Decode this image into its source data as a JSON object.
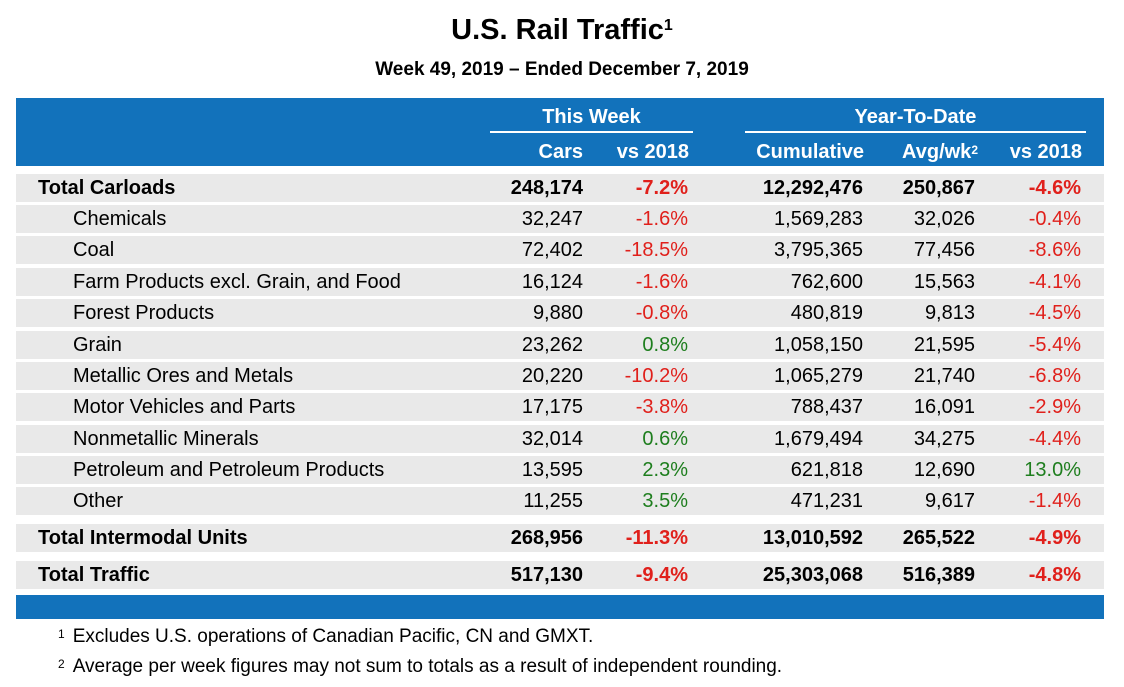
{
  "title": "U.S. Rail Traffic",
  "title_footnote": "1",
  "subtitle": "Week 49, 2019 – Ended December 7, 2019",
  "groups": {
    "this_week": "This Week",
    "ytd": "Year-To-Date"
  },
  "columns": {
    "cars": "Cars",
    "vs2018_week": "vs 2018",
    "cumulative": "Cumulative",
    "avgwk": "Avg/wk",
    "avgwk_footnote": "2",
    "vs2018_ytd": "vs 2018"
  },
  "colors": {
    "header": "#1272bb",
    "row_bg": "#e9e9e9",
    "negative": "#e0201b",
    "positive": "#1e7e1e"
  },
  "chart_data": {
    "type": "table",
    "title": "U.S. Rail Traffic",
    "subtitle": "Week 49, 2019 – Ended December 7, 2019",
    "columns": [
      "Cars",
      "vs 2018",
      "Cumulative",
      "Avg/wk",
      "vs 2018"
    ],
    "rows": [
      {
        "label": "Total Carloads",
        "total": true,
        "cars": "248,174",
        "wk_chg": "-7.2%",
        "cumulative": "12,292,476",
        "avg": "250,867",
        "ytd_chg": "-4.6%"
      },
      {
        "label": "Chemicals",
        "total": false,
        "cars": "32,247",
        "wk_chg": "-1.6%",
        "cumulative": "1,569,283",
        "avg": "32,026",
        "ytd_chg": "-0.4%"
      },
      {
        "label": "Coal",
        "total": false,
        "cars": "72,402",
        "wk_chg": "-18.5%",
        "cumulative": "3,795,365",
        "avg": "77,456",
        "ytd_chg": "-8.6%"
      },
      {
        "label": "Farm Products excl. Grain, and Food",
        "total": false,
        "cars": "16,124",
        "wk_chg": "-1.6%",
        "cumulative": "762,600",
        "avg": "15,563",
        "ytd_chg": "-4.1%"
      },
      {
        "label": "Forest Products",
        "total": false,
        "cars": "9,880",
        "wk_chg": "-0.8%",
        "cumulative": "480,819",
        "avg": "9,813",
        "ytd_chg": "-4.5%"
      },
      {
        "label": "Grain",
        "total": false,
        "cars": "23,262",
        "wk_chg": "0.8%",
        "cumulative": "1,058,150",
        "avg": "21,595",
        "ytd_chg": "-5.4%"
      },
      {
        "label": "Metallic Ores and Metals",
        "total": false,
        "cars": "20,220",
        "wk_chg": "-10.2%",
        "cumulative": "1,065,279",
        "avg": "21,740",
        "ytd_chg": "-6.8%"
      },
      {
        "label": "Motor Vehicles and Parts",
        "total": false,
        "cars": "17,175",
        "wk_chg": "-3.8%",
        "cumulative": "788,437",
        "avg": "16,091",
        "ytd_chg": "-2.9%"
      },
      {
        "label": "Nonmetallic Minerals",
        "total": false,
        "cars": "32,014",
        "wk_chg": "0.6%",
        "cumulative": "1,679,494",
        "avg": "34,275",
        "ytd_chg": "-4.4%"
      },
      {
        "label": "Petroleum and Petroleum Products",
        "total": false,
        "cars": "13,595",
        "wk_chg": "2.3%",
        "cumulative": "621,818",
        "avg": "12,690",
        "ytd_chg": "13.0%"
      },
      {
        "label": "Other",
        "total": false,
        "cars": "11,255",
        "wk_chg": "3.5%",
        "cumulative": "471,231",
        "avg": "9,617",
        "ytd_chg": "-1.4%"
      },
      {
        "label": "Total Intermodal Units",
        "total": true,
        "cars": "268,956",
        "wk_chg": "-11.3%",
        "cumulative": "13,010,592",
        "avg": "265,522",
        "ytd_chg": "-4.9%"
      },
      {
        "label": "Total Traffic",
        "total": true,
        "cars": "517,130",
        "wk_chg": "-9.4%",
        "cumulative": "25,303,068",
        "avg": "516,389",
        "ytd_chg": "-4.8%"
      }
    ]
  },
  "footnotes": [
    {
      "mark": "1",
      "text": "Excludes U.S. operations of Canadian Pacific, CN and GMXT."
    },
    {
      "mark": "2",
      "text": "Average per week figures may not sum to totals as a result of independent rounding."
    }
  ]
}
